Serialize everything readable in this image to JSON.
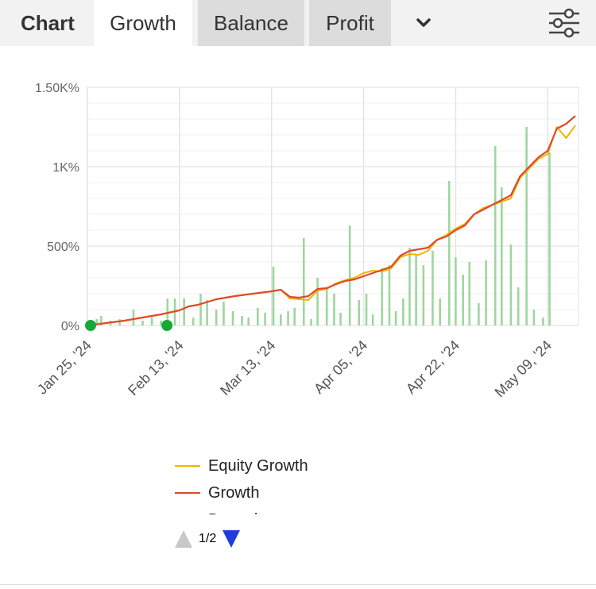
{
  "tabs": {
    "chart": "Chart",
    "growth": "Growth",
    "balance": "Balance",
    "profit": "Profit"
  },
  "icons": {
    "more": "chevron-down-icon",
    "settings": "sliders-icon"
  },
  "chart_data": {
    "type": "line",
    "title": "",
    "xlabel": "",
    "ylabel": "",
    "ylim": [
      0,
      1500
    ],
    "yticks": [
      {
        "value": 0,
        "label": "0%"
      },
      {
        "value": 500,
        "label": "500%"
      },
      {
        "value": 1000,
        "label": "1K%"
      },
      {
        "value": 1500,
        "label": "1.50K%"
      }
    ],
    "xlim": [
      0,
      53
    ],
    "xticks": [
      {
        "value": 0,
        "label": "Jan 25, '24"
      },
      {
        "value": 10,
        "label": "Feb 13, '24"
      },
      {
        "value": 20,
        "label": "Mar 13, '24"
      },
      {
        "value": 30,
        "label": "Apr 05, '24"
      },
      {
        "value": 40,
        "label": "Apr 22, '24"
      },
      {
        "value": 50,
        "label": "May 09, '24"
      }
    ],
    "grid": true,
    "series": [
      {
        "name": "Growth",
        "color": "#e04a2a",
        "points": [
          [
            0,
            0
          ],
          [
            2,
            15
          ],
          [
            4,
            30
          ],
          [
            6,
            50
          ],
          [
            8,
            70
          ],
          [
            10,
            95
          ],
          [
            11,
            120
          ],
          [
            12,
            130
          ],
          [
            14,
            165
          ],
          [
            16,
            185
          ],
          [
            18,
            200
          ],
          [
            20,
            215
          ],
          [
            21,
            225
          ],
          [
            22,
            180
          ],
          [
            23,
            175
          ],
          [
            24,
            185
          ],
          [
            25,
            230
          ],
          [
            26,
            235
          ],
          [
            27,
            260
          ],
          [
            28,
            280
          ],
          [
            29,
            290
          ],
          [
            30,
            310
          ],
          [
            31,
            330
          ],
          [
            32,
            350
          ],
          [
            33,
            370
          ],
          [
            34,
            440
          ],
          [
            35,
            470
          ],
          [
            36,
            480
          ],
          [
            37,
            490
          ],
          [
            38,
            540
          ],
          [
            39,
            560
          ],
          [
            40,
            600
          ],
          [
            41,
            630
          ],
          [
            42,
            700
          ],
          [
            43,
            730
          ],
          [
            44,
            760
          ],
          [
            45,
            790
          ],
          [
            46,
            820
          ],
          [
            47,
            940
          ],
          [
            48,
            1000
          ],
          [
            49,
            1060
          ],
          [
            50,
            1100
          ],
          [
            51,
            1240
          ],
          [
            52,
            1270
          ],
          [
            53,
            1320
          ]
        ]
      },
      {
        "name": "Equity Growth",
        "color": "#f0b400",
        "points": [
          [
            0,
            0
          ],
          [
            2,
            15
          ],
          [
            4,
            30
          ],
          [
            6,
            50
          ],
          [
            8,
            70
          ],
          [
            10,
            95
          ],
          [
            11,
            120
          ],
          [
            12,
            130
          ],
          [
            14,
            165
          ],
          [
            16,
            185
          ],
          [
            18,
            200
          ],
          [
            20,
            215
          ],
          [
            21,
            225
          ],
          [
            22,
            170
          ],
          [
            23,
            165
          ],
          [
            24,
            160
          ],
          [
            25,
            220
          ],
          [
            26,
            230
          ],
          [
            27,
            265
          ],
          [
            28,
            285
          ],
          [
            29,
            300
          ],
          [
            30,
            330
          ],
          [
            31,
            345
          ],
          [
            32,
            340
          ],
          [
            33,
            360
          ],
          [
            34,
            430
          ],
          [
            35,
            450
          ],
          [
            36,
            445
          ],
          [
            37,
            470
          ],
          [
            38,
            540
          ],
          [
            39,
            570
          ],
          [
            40,
            610
          ],
          [
            41,
            640
          ],
          [
            42,
            700
          ],
          [
            43,
            740
          ],
          [
            44,
            760
          ],
          [
            45,
            780
          ],
          [
            46,
            800
          ],
          [
            47,
            930
          ],
          [
            48,
            990
          ],
          [
            49,
            1050
          ],
          [
            50,
            1080
          ],
          [
            51,
            1250
          ],
          [
            52,
            1180
          ],
          [
            53,
            1260
          ]
        ]
      }
    ],
    "deposit_bars": {
      "color": "#9ed69e",
      "values": [
        [
          1,
          40
        ],
        [
          1.5,
          60
        ],
        [
          2.5,
          30
        ],
        [
          3.5,
          40
        ],
        [
          5,
          100
        ],
        [
          6,
          30
        ],
        [
          7,
          50
        ],
        [
          8,
          30
        ],
        [
          8.7,
          170
        ],
        [
          9.5,
          170
        ],
        [
          10.5,
          170
        ],
        [
          11.5,
          50
        ],
        [
          12.3,
          200
        ],
        [
          13,
          160
        ],
        [
          14,
          100
        ],
        [
          14.8,
          150
        ],
        [
          15.8,
          90
        ],
        [
          16.8,
          60
        ],
        [
          17.5,
          50
        ],
        [
          18.5,
          110
        ],
        [
          19.3,
          80
        ],
        [
          20.2,
          370
        ],
        [
          21,
          70
        ],
        [
          21.8,
          90
        ],
        [
          22.5,
          110
        ],
        [
          23.5,
          550
        ],
        [
          24.3,
          40
        ],
        [
          25,
          300
        ],
        [
          26,
          230
        ],
        [
          26.8,
          200
        ],
        [
          27.5,
          80
        ],
        [
          28.5,
          630
        ],
        [
          29.5,
          160
        ],
        [
          30.3,
          200
        ],
        [
          31,
          70
        ],
        [
          32,
          360
        ],
        [
          32.8,
          380
        ],
        [
          33.5,
          90
        ],
        [
          34.3,
          170
        ],
        [
          35,
          490
        ],
        [
          35.7,
          450
        ],
        [
          36.5,
          380
        ],
        [
          37.5,
          470
        ],
        [
          38.3,
          170
        ],
        [
          39.3,
          910
        ],
        [
          40,
          430
        ],
        [
          40.8,
          320
        ],
        [
          41.5,
          400
        ],
        [
          42.5,
          140
        ],
        [
          43.3,
          410
        ],
        [
          44.3,
          1130
        ],
        [
          45,
          870
        ],
        [
          46,
          510
        ],
        [
          46.8,
          240
        ],
        [
          47.7,
          1250
        ],
        [
          48.5,
          100
        ],
        [
          49.5,
          50
        ],
        [
          50.2,
          1090
        ]
      ]
    },
    "markers": {
      "color": "#16a93a",
      "points": [
        [
          0,
          0
        ],
        [
          8.3,
          0
        ]
      ]
    },
    "legend": {
      "position": "bottom",
      "items": [
        {
          "label": "Equity Growth",
          "color": "#f0b400"
        },
        {
          "label": "Growth",
          "color": "#e04a2a"
        },
        {
          "label": "Deposit",
          "color": "#9ed69e"
        }
      ],
      "page": "1/2"
    }
  }
}
